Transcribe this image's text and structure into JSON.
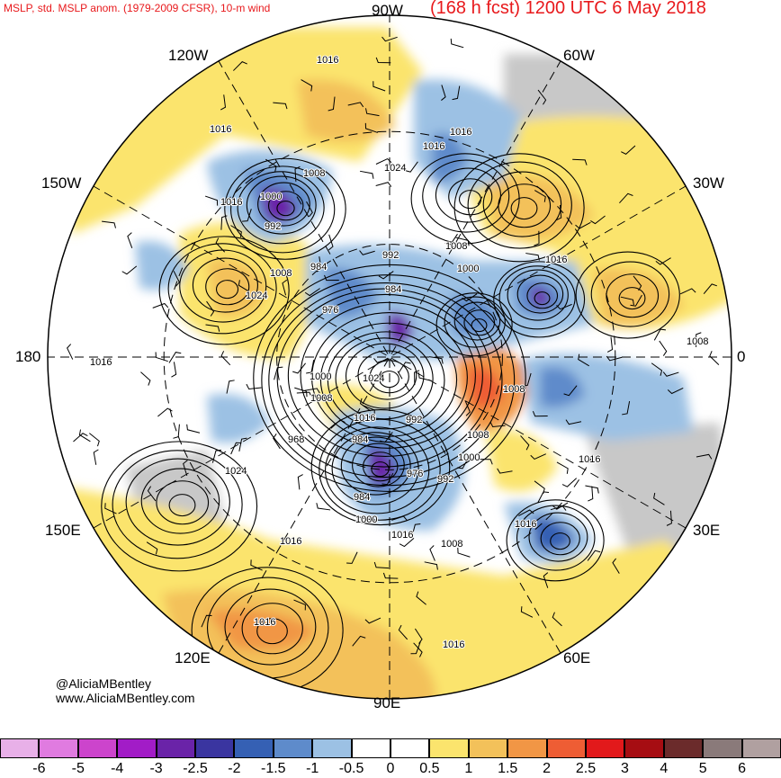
{
  "header": {
    "left_title": "MSLP, std. MSLP anom. (1979-2009 CFSR), 10-m wind",
    "right_title": "(168 h fcst) 1200 UTC 6 May 2018"
  },
  "longitude_labels": {
    "lon_90w": "90W",
    "lon_120w": "120W",
    "lon_60w": "60W",
    "lon_150w": "150W",
    "lon_30w": "30W",
    "lon_180": "180",
    "lon_0": "0",
    "lon_150e": "150E",
    "lon_30e": "30E",
    "lon_120e": "120E",
    "lon_60e": "60E",
    "lon_90e": "90E"
  },
  "credit": {
    "handle": "@AliciaMBentley",
    "site": "www.AliciaMBentley.com"
  },
  "colorbar": {
    "ticks": [
      "-6",
      "-5",
      "-4",
      "-3",
      "-2.5",
      "-2",
      "-1.5",
      "-1",
      "-0.5",
      "0",
      "0.5",
      "1",
      "1.5",
      "2",
      "2.5",
      "3",
      "4",
      "5",
      "6"
    ],
    "colors": [
      "#e8b0e8",
      "#e07be0",
      "#cc44cc",
      "#a21cc7",
      "#6a23a8",
      "#3a35a0",
      "#3560b4",
      "#5e8bcb",
      "#9cc1e4",
      "#ffffff",
      "#ffffff",
      "#fbe46d",
      "#f3c15a",
      "#f19645",
      "#ee5d34",
      "#e2191b",
      "#a60d12",
      "#6b2b2b",
      "#8a7a7a",
      "#b0a0a0"
    ]
  },
  "map": {
    "isobar_labels": [
      "1016",
      "1016",
      "1016",
      "1016",
      "1008",
      "1024",
      "1000",
      "992",
      "1016",
      "1008",
      "992",
      "1000",
      "1008",
      "984",
      "984",
      "976",
      "1024",
      "1016",
      "1008",
      "1008",
      "1016",
      "1000",
      "1024",
      "1008",
      "1016",
      "992",
      "968",
      "984",
      "1008",
      "1000",
      "976",
      "992",
      "984",
      "1000",
      "1016",
      "1024",
      "1016",
      "1008",
      "1016",
      "1016",
      "1016",
      "1016"
    ]
  }
}
